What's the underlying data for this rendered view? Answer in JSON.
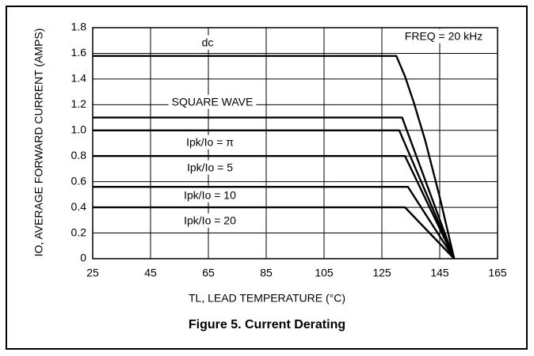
{
  "chart_data": {
    "type": "line",
    "xlabel": "TL, LEAD TEMPERATURE (°C)",
    "ylabel": "IO, AVERAGE FORWARD CURRENT (AMPS)",
    "annotation": "FREQ = 20 kHz",
    "caption": "Figure 5. Current Derating",
    "color": "#000000",
    "grid": true,
    "xlim": [
      25,
      165
    ],
    "xticks": [
      25,
      45,
      65,
      85,
      105,
      125,
      145,
      165
    ],
    "ylim": [
      0,
      1.8
    ],
    "yticks": [
      0,
      0.2,
      0.4,
      0.6,
      0.8,
      {
        "value": 1,
        "label": "1.0"
      },
      1.2,
      1.4,
      1.6,
      1.8
    ],
    "series": [
      {
        "name": "dc",
        "x": [
          25,
          130,
          133,
          136,
          140,
          145,
          150
        ],
        "values": [
          1.58,
          1.58,
          1.42,
          1.22,
          0.92,
          0.48,
          0
        ]
      },
      {
        "name": "SQUARE WAVE",
        "x": [
          25,
          132,
          150
        ],
        "values": [
          1.1,
          1.1,
          0
        ]
      },
      {
        "name": "Ipk/Io = π",
        "x": [
          25,
          131,
          150
        ],
        "values": [
          1.0,
          1.0,
          0
        ]
      },
      {
        "name": "Ipk/Io = 5",
        "x": [
          25,
          133,
          150
        ],
        "values": [
          0.8,
          0.8,
          0
        ]
      },
      {
        "name": "Ipk/Io = 10",
        "x": [
          25,
          134,
          150
        ],
        "values": [
          0.56,
          0.56,
          0
        ]
      },
      {
        "name": "Ipk/Io = 20",
        "x": [
          25,
          133,
          150
        ],
        "values": [
          0.4,
          0.4,
          0
        ]
      }
    ]
  }
}
